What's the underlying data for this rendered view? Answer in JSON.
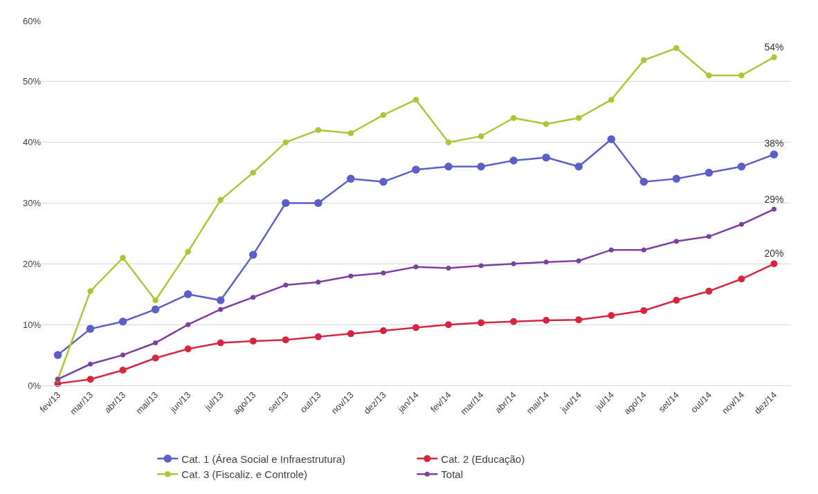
{
  "chart_data": {
    "type": "line",
    "categories": [
      "fev/13",
      "mar/13",
      "abr/13",
      "mai/13",
      "jun/13",
      "jul/13",
      "ago/13",
      "set/13",
      "out/13",
      "nov/13",
      "dez/13",
      "jan/14",
      "fev/14",
      "mar/14",
      "abr/14",
      "mai/14",
      "jun/14",
      "jul/14",
      "ago/14",
      "set/14",
      "out/14",
      "nov/14",
      "dez/14"
    ],
    "series": [
      {
        "name": "Cat. 1 (Área Social e Infraestrutura)",
        "color": "#5b5fc7",
        "values": [
          5,
          9.3,
          10.5,
          12.5,
          15,
          14,
          21.5,
          30,
          30,
          34,
          33.5,
          35.5,
          36,
          36,
          37,
          37.5,
          36,
          40.5,
          33.5,
          34,
          35,
          36,
          38
        ],
        "value_labels": [
          null,
          null,
          null,
          null,
          null,
          null,
          null,
          null,
          null,
          null,
          null,
          null,
          null,
          null,
          null,
          null,
          null,
          null,
          null,
          null,
          null,
          null,
          "38%"
        ]
      },
      {
        "name": "Cat. 2 (Educação)",
        "color": "#d6263f",
        "values": [
          0.3,
          1,
          2.5,
          4.5,
          6,
          7,
          7.3,
          7.5,
          8,
          8.5,
          9,
          9.5,
          10,
          10.3,
          10.5,
          10.7,
          10.8,
          11.5,
          12.3,
          14,
          15.5,
          17.5,
          20
        ],
        "value_labels": [
          null,
          null,
          null,
          null,
          null,
          null,
          null,
          null,
          null,
          null,
          null,
          null,
          null,
          null,
          null,
          null,
          null,
          null,
          null,
          null,
          null,
          null,
          "20%"
        ]
      },
      {
        "name": "Cat. 3 (Fiscaliz. e Controle)",
        "color": "#a8c83a",
        "values": [
          1,
          15.5,
          21,
          14,
          22,
          30.5,
          35,
          40,
          42,
          41.5,
          44.5,
          47,
          40,
          41,
          44,
          43,
          44,
          47,
          53.5,
          55.5,
          51,
          51,
          54
        ],
        "value_labels": [
          null,
          null,
          null,
          null,
          null,
          null,
          null,
          null,
          null,
          null,
          null,
          null,
          null,
          null,
          null,
          null,
          null,
          null,
          null,
          null,
          null,
          null,
          "54%"
        ]
      },
      {
        "name": "Total",
        "color": "#7b3fa0",
        "values": [
          1,
          3.5,
          5,
          7,
          10,
          12.5,
          14.5,
          16.5,
          17,
          18,
          18.5,
          19.5,
          19.3,
          19.7,
          20,
          20.3,
          20.5,
          22.3,
          22.3,
          23.7,
          24.5,
          26.5,
          29
        ],
        "value_labels": [
          null,
          null,
          null,
          null,
          null,
          null,
          null,
          null,
          null,
          null,
          null,
          null,
          null,
          null,
          null,
          null,
          null,
          null,
          null,
          null,
          null,
          null,
          "29%"
        ]
      }
    ],
    "ylim": [
      0,
      60
    ],
    "yticks": [
      {
        "value": 0,
        "label": "0%"
      },
      {
        "value": 10,
        "label": "10%"
      },
      {
        "value": 20,
        "label": "20%"
      },
      {
        "value": 30,
        "label": "30%"
      },
      {
        "value": 40,
        "label": "40%"
      },
      {
        "value": 50,
        "label": "50%"
      },
      {
        "value": 60,
        "label": "60%"
      }
    ],
    "grid": "y",
    "legend": "bottom",
    "marker": "circle",
    "line_style": "solid"
  }
}
